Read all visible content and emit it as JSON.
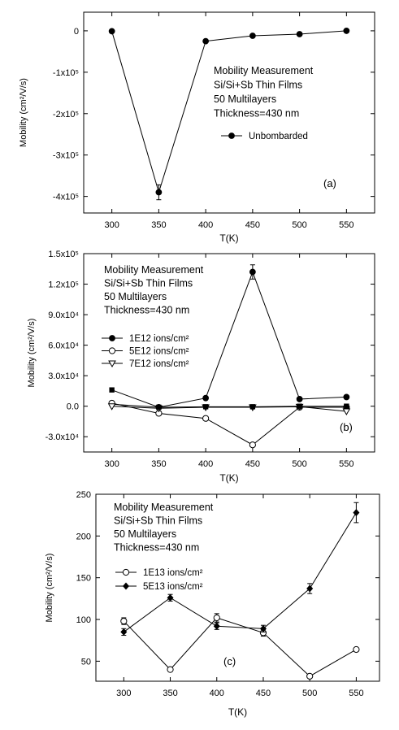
{
  "chart_data": [
    {
      "type": "line",
      "panel_label": "(a)",
      "xlabel": "T(K)",
      "ylabel": "Mobility (cm²/V/s)",
      "xlim": [
        270,
        580
      ],
      "ylim": [
        -440000,
        45000
      ],
      "xticks": [
        300,
        350,
        400,
        450,
        500,
        550
      ],
      "yticks": [
        {
          "value": 0,
          "label": "0"
        },
        {
          "value": -100000,
          "label": "-1x10⁵"
        },
        {
          "value": -200000,
          "label": "-2x10⁵"
        },
        {
          "value": -300000,
          "label": "-3x10⁵"
        },
        {
          "value": -400000,
          "label": "-4x10⁵"
        }
      ],
      "annotation_lines": [
        "Mobility Measurement",
        "Si/Si+Sb Thin Films",
        "50 Multilayers",
        "Thickness=430 nm"
      ],
      "legend_position": "middle-right",
      "series": [
        {
          "name": "Unbombarded",
          "marker": "filled-circle",
          "x": [
            300,
            350,
            400,
            450,
            500,
            550
          ],
          "values": [
            -1000,
            -390000,
            -25000,
            -12000,
            -8000,
            0
          ],
          "errors": [
            0,
            18000,
            0,
            0,
            0,
            0
          ]
        }
      ]
    },
    {
      "type": "line",
      "panel_label": "(b)",
      "xlabel": "T(K)",
      "ylabel": "Mobility (cm²/V/s)",
      "xlim": [
        270,
        580
      ],
      "ylim": [
        -45000,
        150000
      ],
      "xticks": [
        300,
        350,
        400,
        450,
        500,
        550
      ],
      "yticks": [
        {
          "value": 150000,
          "label": "1.5x10⁵"
        },
        {
          "value": 120000,
          "label": "1.2x10⁵"
        },
        {
          "value": 90000,
          "label": "9.0x10⁴"
        },
        {
          "value": 60000,
          "label": "6.0x10⁴"
        },
        {
          "value": 30000,
          "label": "3.0x10⁴"
        },
        {
          "value": 0,
          "label": "0.0"
        },
        {
          "value": -30000,
          "label": "-3.0x10⁴"
        }
      ],
      "annotation_lines": [
        "Mobility Measurement",
        "Si/Si+Sb Thin Films",
        "50 Multilayers",
        "Thickness=430 nm"
      ],
      "legend_position": "middle-left",
      "series": [
        {
          "name": "1E12 ions/cm²",
          "marker": "filled-circle",
          "x": [
            300,
            350,
            400,
            450,
            500,
            550
          ],
          "values": [
            2000,
            -1000,
            8000,
            132000,
            7000,
            9000
          ],
          "errors": [
            0,
            0,
            0,
            7000,
            0,
            0
          ]
        },
        {
          "name": "5E12 ions/cm²",
          "marker": "open-circle",
          "x": [
            300,
            350,
            400,
            450,
            500,
            550
          ],
          "values": [
            3000,
            -7000,
            -12000,
            -38000,
            -1000,
            -1000
          ],
          "errors": [
            0,
            0,
            0,
            0,
            0,
            0
          ]
        },
        {
          "name": "7E12 ions/cm²",
          "marker": "open-triangle-down",
          "x": [
            300,
            350,
            400,
            450,
            500,
            550
          ],
          "values": [
            0,
            -2000,
            -1000,
            -1000,
            -500,
            -5000
          ],
          "errors": [
            0,
            0,
            0,
            0,
            0,
            0
          ]
        },
        {
          "name": "",
          "marker": "filled-square",
          "x": [
            300,
            350,
            400,
            450,
            500,
            550
          ],
          "values": [
            16000,
            -1000,
            -500,
            -500,
            0,
            0
          ],
          "errors": [
            0,
            0,
            0,
            0,
            0,
            0
          ]
        }
      ]
    },
    {
      "type": "line",
      "panel_label": "(c)",
      "xlabel": "T(K)",
      "ylabel": "Mobility (cm²/V/s)",
      "xlim": [
        270,
        575
      ],
      "ylim": [
        26,
        250
      ],
      "xticks": [
        300,
        350,
        400,
        450,
        500,
        550
      ],
      "yticks": [
        {
          "value": 250,
          "label": "250"
        },
        {
          "value": 200,
          "label": "200"
        },
        {
          "value": 150,
          "label": "150"
        },
        {
          "value": 100,
          "label": "100"
        },
        {
          "value": 50,
          "label": "50"
        }
      ],
      "annotation_lines": [
        "Mobility Measurement",
        "Si/Si+Sb Thin Films",
        "50 Multilayers",
        "Thickness=430 nm"
      ],
      "legend_position": "middle-left",
      "series": [
        {
          "name": "1E13 ions/cm²",
          "marker": "open-circle",
          "x": [
            300,
            350,
            400,
            450,
            500,
            550
          ],
          "values": [
            98,
            40,
            102,
            84,
            32,
            64
          ],
          "errors": [
            4,
            0,
            5,
            4,
            0,
            2
          ]
        },
        {
          "name": "5E13 ions/cm²",
          "marker": "filled-diamond",
          "x": [
            300,
            350,
            400,
            450,
            500,
            550
          ],
          "values": [
            85,
            126,
            92,
            89,
            137,
            228
          ],
          "errors": [
            4,
            4,
            4,
            4,
            6,
            12
          ]
        }
      ]
    }
  ]
}
